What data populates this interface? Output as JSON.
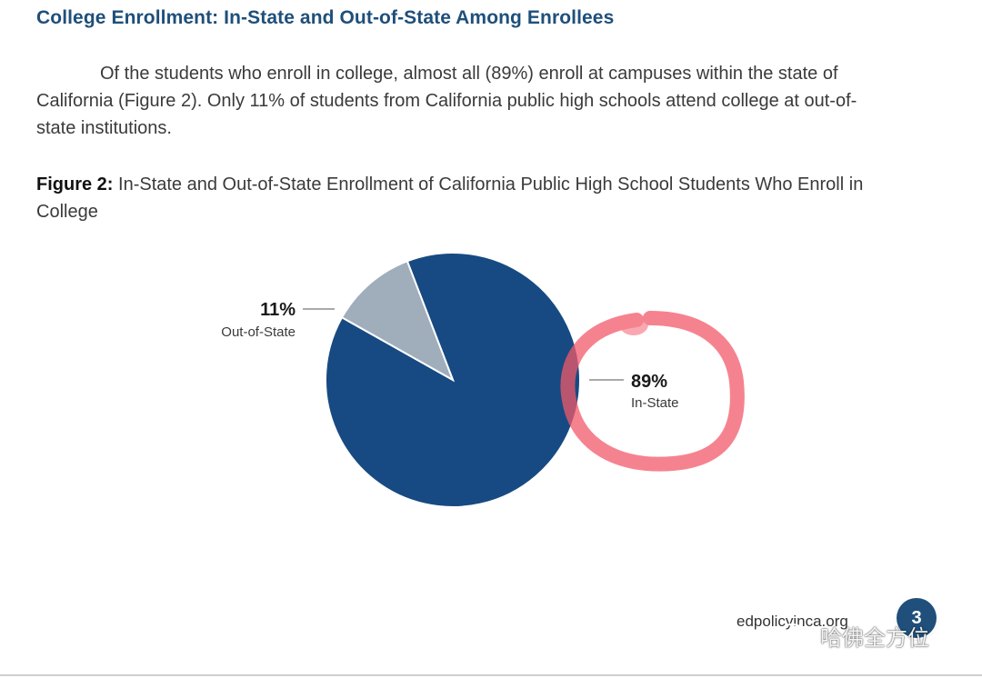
{
  "section": {
    "title": "College Enrollment: In-State and Out-of-State Among Enrollees"
  },
  "body": {
    "paragraph": "Of the students who enroll in college, almost all (89%) enroll at campuses within the state of California (Figure 2). Only 11% of students from California public high schools attend college at out-of-state institutions."
  },
  "figure": {
    "label": "Figure 2:",
    "caption": " In-State and Out-of-State Enrollment of California Public High School Students Who Enroll in College"
  },
  "chart_data": {
    "type": "pie",
    "title": "",
    "slices": [
      {
        "name": "In-State",
        "value": 89,
        "label": "89%",
        "color": "#174a82"
      },
      {
        "name": "Out-of-State",
        "value": 11,
        "label": "11%",
        "color": "#a0adbb"
      }
    ],
    "start_angle_deg": -21,
    "annotation": {
      "type": "hand-drawn circle",
      "target": "In-State",
      "color": "#f25a6a"
    }
  },
  "footer": {
    "url": "edpolicyinca.org",
    "page_number": "3"
  },
  "watermark": {
    "text": "哈佛全方位",
    "icon": "wechat-icon"
  }
}
